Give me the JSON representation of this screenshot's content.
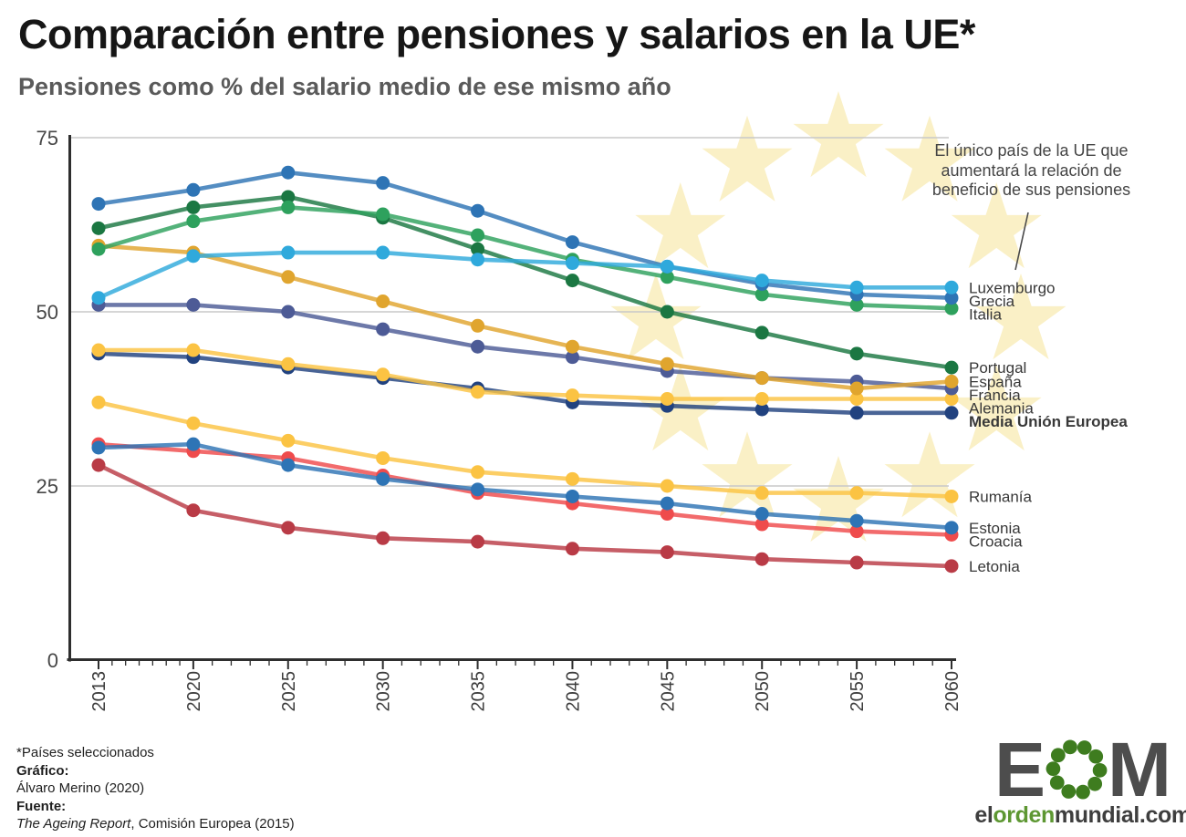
{
  "header": {
    "title": "Comparación entre pensiones y salarios en la UE*",
    "subtitle": "Pensiones como % del salario medio de ese mismo año"
  },
  "annotation": {
    "text": "El único país de la UE que\naumentará la relación de\nbeneficio de sus pensiones",
    "points_to": "Luxemburgo"
  },
  "chart_data": {
    "type": "line",
    "title": "Comparación entre pensiones y salarios en la UE*",
    "subtitle": "Pensiones como % del salario medio de ese mismo año",
    "x": [
      2013,
      2020,
      2025,
      2030,
      2035,
      2040,
      2045,
      2050,
      2055,
      2060
    ],
    "x_tick_labels": [
      "2013",
      "2020",
      "2025",
      "2030",
      "2035",
      "2040",
      "2045",
      "2050",
      "2055",
      "2060"
    ],
    "ylim": [
      0,
      75
    ],
    "yticks": [
      0,
      25,
      50,
      75
    ],
    "ytick_labels": [
      "0",
      "25",
      "50",
      "75"
    ],
    "grid": "horizontal",
    "legend_position": "right-of-line-ends",
    "background_motif": "EU flag circle of 12 pale yellow stars",
    "star_color": "#FAF0C6",
    "grid_color": "#C8C8C8",
    "axis_color": "#2E2E2E",
    "series": [
      {
        "name": "Letonia",
        "color": "#B93B46",
        "values": [
          28,
          21.5,
          19,
          17.5,
          17,
          16,
          15.5,
          14.5,
          14,
          13.5
        ]
      },
      {
        "name": "Croacia",
        "color": "#EF4B4C",
        "values": [
          31,
          30,
          29,
          26.5,
          24,
          22.5,
          21,
          19.5,
          18.5,
          18
        ]
      },
      {
        "name": "Estonia",
        "color": "#2E74B5",
        "values": [
          30.5,
          31,
          28,
          26,
          24.5,
          23.5,
          22.5,
          21,
          20,
          19
        ]
      },
      {
        "name": "Rumanía",
        "color": "#FBC343",
        "values": [
          37,
          34,
          31.5,
          29,
          27,
          26,
          25,
          24,
          24,
          23.5
        ]
      },
      {
        "name": "Media Unión Europea",
        "color": "#21427F",
        "values": [
          44,
          43.5,
          42,
          40.5,
          39,
          37,
          36.5,
          36,
          35.5,
          35.5
        ],
        "bold_label": true
      },
      {
        "name": "Alemania",
        "color": "#FBC343",
        "values": [
          44.5,
          44.5,
          42.5,
          41,
          38.5,
          38,
          37.5,
          37.5,
          37.5,
          37.5
        ]
      },
      {
        "name": "Francia",
        "color": "#4D5B96",
        "values": [
          51,
          51,
          50,
          47.5,
          45,
          43.5,
          41.5,
          40.5,
          40,
          39
        ]
      },
      {
        "name": "España",
        "color": "#E0A52E",
        "values": [
          59.5,
          58.5,
          55,
          51.5,
          48,
          45,
          42.5,
          40.5,
          39,
          40
        ]
      },
      {
        "name": "Portugal",
        "color": "#1B7742",
        "values": [
          62,
          65,
          66.5,
          63.5,
          59,
          54.5,
          50,
          47,
          44,
          42
        ]
      },
      {
        "name": "Italia",
        "color": "#2EA15D",
        "values": [
          59,
          63,
          65,
          64,
          61,
          57.5,
          55,
          52.5,
          51,
          50.5
        ]
      },
      {
        "name": "Grecia",
        "color": "#2E74B5",
        "values": [
          65.5,
          67.5,
          70,
          68.5,
          64.5,
          60,
          56.5,
          54,
          52.5,
          52
        ]
      },
      {
        "name": "Luxemburgo",
        "color": "#2FA9DC",
        "values": [
          52,
          58,
          58.5,
          58.5,
          57.5,
          57,
          56.5,
          54.5,
          53.5,
          53.5
        ]
      }
    ]
  },
  "footer": {
    "footnote": "*Países seleccionados",
    "grafico_label": "Gráfico:",
    "grafico_value": "Álvaro Merino (2020)",
    "fuente_label": "Fuente:",
    "fuente_source_italic": "The Ageing Report",
    "fuente_source_rest": ", Comisión Europea (2015)"
  },
  "logo": {
    "letter_e": "E",
    "letter_m": "M",
    "site_el": "el",
    "site_orden": "orden",
    "site_rest": "mundial.com",
    "dot_color": "#3E7C1F",
    "letter_color": "#4D4D4D"
  }
}
